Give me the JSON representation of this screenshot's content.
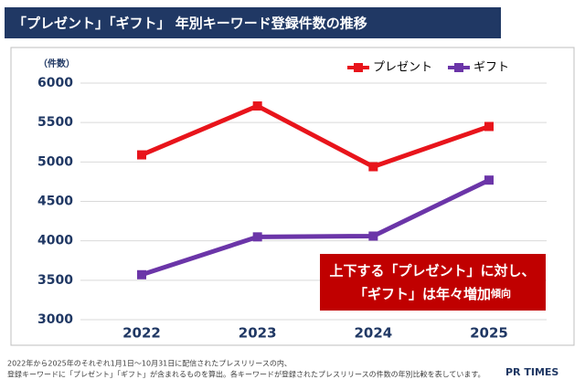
{
  "chart_data": {
    "type": "line",
    "title": "「プレゼント」「ギフト」 年別キーワード登録件数の推移",
    "y_axis_label": "（件数）",
    "categories": [
      "2022",
      "2023",
      "2024",
      "2025"
    ],
    "series": [
      {
        "name": "プレゼント",
        "color": "#e8141b",
        "values": [
          5090,
          5710,
          4940,
          5450
        ]
      },
      {
        "name": "ギフト",
        "color": "#6b35a8",
        "values": [
          3570,
          4050,
          4060,
          4770
        ]
      }
    ],
    "ylim": [
      3000,
      6000
    ],
    "yticks": [
      3000,
      3500,
      4000,
      4500,
      5000,
      5500,
      6000
    ],
    "grid": true,
    "legend": "top-right",
    "annotation": {
      "lines": [
        "上下する「プレゼント」に対し、",
        "「ギフト」は年々増加"
      ],
      "suffix": "傾向",
      "color": "#c00000"
    },
    "footnotes": [
      "2022年から2025年のそれぞれ1月1日～10月31日に配信されたプレスリリースの内、",
      "登録キーワードに「プレゼント」「ギフト」が含まれるものを算出。各キーワードが登録されたプレスリリースの件数の年別比較を表しています。"
    ],
    "logo": "PR TIMES"
  }
}
